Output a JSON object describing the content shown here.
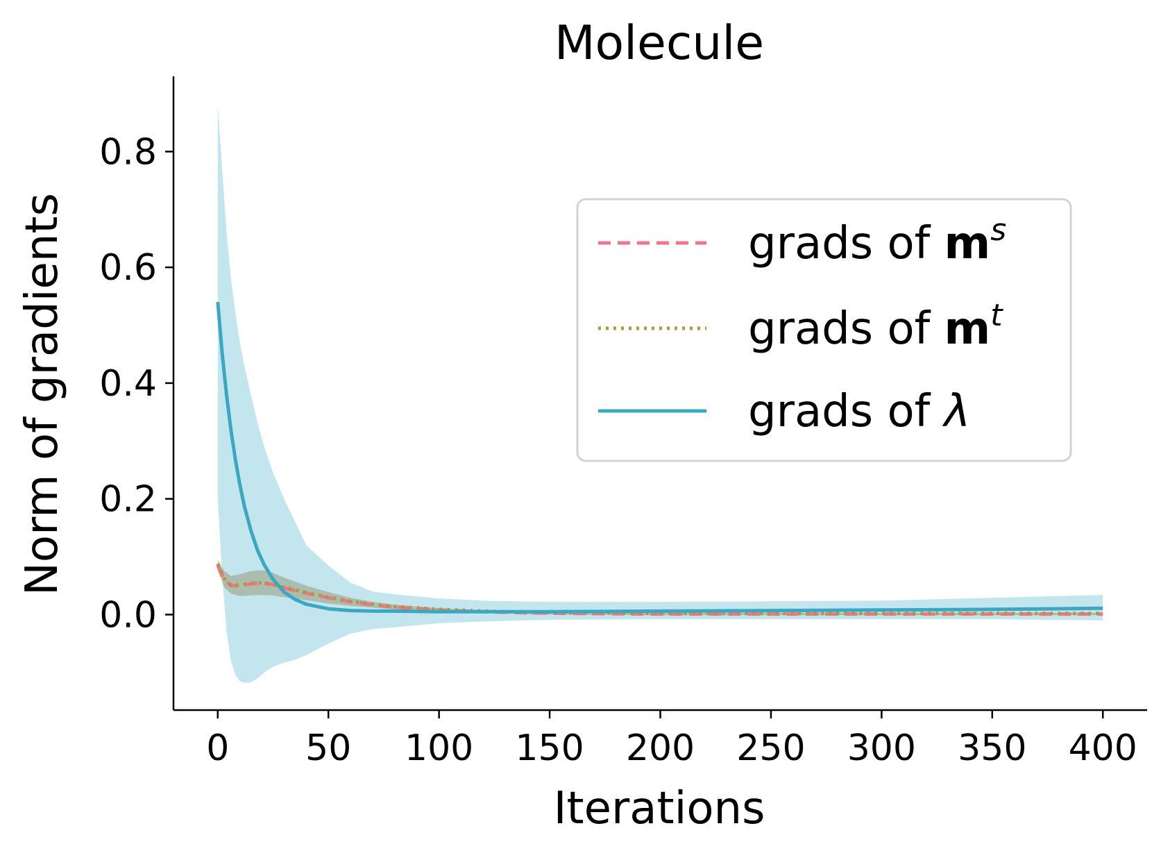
{
  "chart_data": {
    "type": "line",
    "title": "Molecule",
    "xlabel": "Iterations",
    "ylabel": "Norm of gradients",
    "xlim": [
      -20,
      420
    ],
    "ylim": [
      -0.165,
      0.93
    ],
    "xticks": [
      0,
      50,
      100,
      150,
      200,
      250,
      300,
      350,
      400
    ],
    "xtick_labels": [
      "0",
      "50",
      "100",
      "150",
      "200",
      "250",
      "300",
      "350",
      "400"
    ],
    "yticks": [
      0.0,
      0.2,
      0.4,
      0.6,
      0.8
    ],
    "ytick_labels": [
      "0.0",
      "0.2",
      "0.4",
      "0.6",
      "0.8"
    ],
    "grid": false,
    "legend_position": "upper-right",
    "series": [
      {
        "name": "grads of m^s",
        "legend": {
          "prefix": "grads of ",
          "symbol": "m",
          "sup": "s"
        },
        "color": "#f0748a",
        "style": "dashed",
        "x": [
          0,
          3,
          6,
          10,
          15,
          20,
          25,
          30,
          40,
          50,
          60,
          70,
          80,
          100,
          120,
          140,
          160,
          200,
          250,
          300,
          350,
          400
        ],
        "y": [
          0.085,
          0.06,
          0.05,
          0.05,
          0.053,
          0.055,
          0.052,
          0.046,
          0.037,
          0.029,
          0.022,
          0.017,
          0.013,
          0.008,
          0.005,
          0.003,
          0.002,
          0.001,
          0.001,
          0.001,
          0.001,
          0.001
        ],
        "band_upper": [
          0.095,
          0.075,
          0.067,
          0.07,
          0.075,
          0.077,
          0.072,
          0.064,
          0.05,
          0.039,
          0.029,
          0.022,
          0.017,
          0.011,
          0.007,
          0.005,
          0.004,
          0.003,
          0.003,
          0.003,
          0.003,
          0.003
        ],
        "band_lower": [
          0.075,
          0.047,
          0.036,
          0.032,
          0.033,
          0.034,
          0.033,
          0.03,
          0.025,
          0.019,
          0.015,
          0.012,
          0.009,
          0.005,
          0.003,
          0.001,
          0.0,
          -0.001,
          -0.001,
          -0.001,
          -0.001,
          -0.001
        ]
      },
      {
        "name": "grads of m^t",
        "legend": {
          "prefix": "grads of ",
          "symbol": "m",
          "sup": "t"
        },
        "color": "#a89c3d",
        "style": "dotted",
        "x": [
          0,
          3,
          6,
          10,
          15,
          20,
          25,
          30,
          40,
          50,
          60,
          70,
          80,
          100,
          120,
          140,
          160,
          200,
          250,
          300,
          350,
          400
        ],
        "y": [
          0.088,
          0.062,
          0.051,
          0.051,
          0.054,
          0.055,
          0.052,
          0.047,
          0.038,
          0.03,
          0.023,
          0.018,
          0.014,
          0.009,
          0.006,
          0.004,
          0.003,
          0.002,
          0.002,
          0.002,
          0.002,
          0.002
        ]
      },
      {
        "name": "grads of λ",
        "legend": {
          "prefix": "grads of ",
          "symbol": "λ",
          "sup": ""
        },
        "color": "#3ba7c2",
        "style": "solid",
        "band_color": "#c3e5ee",
        "x": [
          0,
          2,
          4,
          6,
          8,
          10,
          12,
          15,
          18,
          21,
          25,
          30,
          35,
          40,
          50,
          60,
          70,
          80,
          100,
          120,
          150,
          200,
          250,
          300,
          350,
          400
        ],
        "y": [
          0.54,
          0.452,
          0.379,
          0.318,
          0.267,
          0.224,
          0.188,
          0.145,
          0.111,
          0.086,
          0.061,
          0.039,
          0.026,
          0.018,
          0.01,
          0.007,
          0.006,
          0.006,
          0.005,
          0.005,
          0.005,
          0.006,
          0.007,
          0.008,
          0.009,
          0.011
        ],
        "band_upper": [
          0.88,
          0.77,
          0.66,
          0.58,
          0.52,
          0.47,
          0.43,
          0.38,
          0.33,
          0.29,
          0.245,
          0.2,
          0.16,
          0.12,
          0.085,
          0.055,
          0.04,
          0.035,
          0.028,
          0.024,
          0.022,
          0.022,
          0.023,
          0.024,
          0.029,
          0.034
        ],
        "band_lower": [
          0.2,
          0.07,
          -0.03,
          -0.08,
          -0.105,
          -0.115,
          -0.118,
          -0.117,
          -0.11,
          -0.1,
          -0.09,
          -0.083,
          -0.078,
          -0.07,
          -0.05,
          -0.033,
          -0.025,
          -0.022,
          -0.015,
          -0.012,
          -0.009,
          -0.008,
          -0.008,
          -0.008,
          -0.008,
          -0.01
        ]
      }
    ]
  }
}
